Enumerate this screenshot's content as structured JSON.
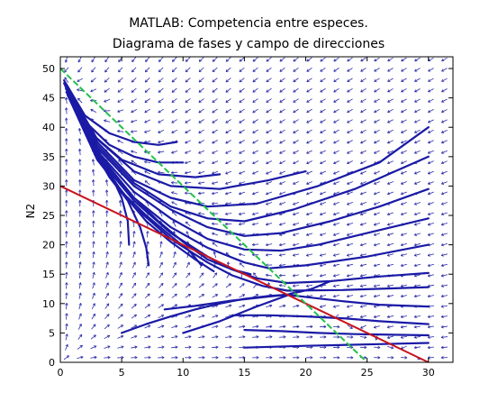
{
  "chart_data": {
    "type": "line",
    "title": "MATLAB: Competencia entre especes.",
    "subtitle": "Diagrama de fases y campo de direcciones",
    "xlabel": "",
    "ylabel": "N2",
    "xlim": [
      0,
      32
    ],
    "ylim": [
      0,
      52
    ],
    "xticks": [
      0,
      5,
      10,
      15,
      20,
      25,
      30
    ],
    "yticks": [
      0,
      5,
      10,
      15,
      20,
      25,
      30,
      35,
      40,
      45,
      50
    ],
    "grid": false,
    "legend": "none",
    "colors": {
      "trajectory": "#1a1aa6",
      "field": "#2a2aa8",
      "nullcline_1": "#c8141e",
      "nullcline_2": "#22c04a"
    },
    "nullclines": [
      {
        "x": [
          0,
          30
        ],
        "y": [
          30,
          0
        ]
      },
      {
        "x": [
          0,
          25
        ],
        "y": [
          50,
          0
        ]
      }
    ],
    "equilibrium": {
      "x": 18.5,
      "y": 11.5
    },
    "trajectories": [
      {
        "x": [
          0.3,
          2,
          4,
          6,
          8,
          9.5
        ],
        "y": [
          48,
          42,
          39,
          37.5,
          37,
          37.5
        ]
      },
      {
        "x": [
          0.3,
          2,
          4,
          6,
          8,
          10
        ],
        "y": [
          47.5,
          41,
          37,
          35,
          34,
          34
        ]
      },
      {
        "x": [
          0.4,
          2.5,
          5,
          8,
          11,
          13
        ],
        "y": [
          47,
          39,
          34.5,
          32,
          31.5,
          32
        ]
      },
      {
        "x": [
          0.5,
          3,
          6,
          9,
          13,
          17,
          20
        ],
        "y": [
          47,
          38,
          32.5,
          30,
          29.5,
          31,
          32.5
        ]
      },
      {
        "x": [
          0.5,
          3,
          6,
          9,
          12,
          16,
          21,
          26,
          30
        ],
        "y": [
          46.5,
          37.5,
          31,
          28,
          26.5,
          27,
          30,
          34,
          40
        ]
      },
      {
        "x": [
          0.5,
          3,
          6,
          9,
          12,
          15,
          19,
          24,
          30
        ],
        "y": [
          46.5,
          37,
          30.5,
          26.5,
          24.5,
          24,
          26,
          29.5,
          35
        ]
      },
      {
        "x": [
          0.5,
          3,
          6,
          9,
          12,
          15,
          18,
          22,
          26,
          30
        ],
        "y": [
          46.5,
          36.5,
          30,
          26,
          23,
          21.5,
          22,
          24,
          26.5,
          29.5
        ]
      },
      {
        "x": [
          0.5,
          3,
          6,
          9,
          12,
          15,
          18,
          21,
          25,
          30
        ],
        "y": [
          46,
          36,
          29,
          24.5,
          21,
          19.2,
          19,
          20,
          22,
          24.5
        ]
      },
      {
        "x": [
          0.5,
          3,
          6,
          9,
          12,
          15,
          17,
          20,
          25,
          30
        ],
        "y": [
          46,
          35.5,
          28,
          23,
          19.5,
          17,
          16,
          16.5,
          18,
          20
        ]
      },
      {
        "x": [
          0.6,
          3,
          6,
          9,
          12,
          14,
          16,
          18.5,
          22,
          26,
          30
        ],
        "y": [
          46,
          35,
          27.5,
          22,
          18,
          15.8,
          14.3,
          13.5,
          13.8,
          14.6,
          15.2
        ]
      },
      {
        "x": [
          0.6,
          3,
          6,
          9,
          12,
          14,
          16.5,
          18.5,
          23,
          30
        ],
        "y": [
          45.5,
          34.5,
          26.5,
          21,
          17,
          14.8,
          13,
          12.2,
          12.3,
          12.8
        ]
      },
      {
        "x": [
          0.6,
          3,
          5,
          7,
          9,
          10.5,
          11.5
        ],
        "y": [
          45.5,
          35,
          29,
          25,
          21.5,
          19,
          16.5
        ]
      },
      {
        "x": [
          0.6,
          2.5,
          4,
          5.5,
          6.5,
          7,
          7.2
        ],
        "y": [
          45.5,
          37,
          31.5,
          27.5,
          23,
          19.5,
          16.5
        ]
      },
      {
        "x": [
          0.6,
          2.5,
          4,
          5,
          5.5,
          5.6
        ],
        "y": [
          45.5,
          37.5,
          32.5,
          28,
          24,
          20
        ]
      },
      {
        "x": [
          0.6,
          3,
          5,
          7,
          9,
          11,
          12.5
        ],
        "y": [
          45.5,
          35.5,
          29,
          24,
          20.5,
          17.5,
          15.5
        ]
      },
      {
        "x": [
          0.6,
          3.5,
          6,
          8,
          10,
          12,
          14,
          15.5
        ],
        "y": [
          45.5,
          34.5,
          28,
          24,
          20.5,
          17.5,
          15.8,
          15
        ]
      },
      {
        "x": [
          5,
          7,
          9,
          11,
          13,
          15,
          17,
          18.5
        ],
        "y": [
          5,
          6.5,
          7.8,
          9,
          10,
          10.8,
          11.3,
          11.5
        ]
      },
      {
        "x": [
          8.5,
          11,
          14,
          17,
          18.5
        ],
        "y": [
          9,
          9.6,
          10.5,
          11.2,
          11.5
        ]
      },
      {
        "x": [
          10,
          13,
          16,
          18.5
        ],
        "y": [
          5,
          7,
          9.5,
          11.4
        ]
      },
      {
        "x": [
          14,
          17,
          20,
          23,
          26,
          30
        ],
        "y": [
          8,
          8,
          7.8,
          7.5,
          7,
          6.5
        ]
      },
      {
        "x": [
          15,
          18,
          21,
          24,
          27,
          30
        ],
        "y": [
          5.5,
          5.3,
          5,
          4.8,
          4.7,
          4.6
        ]
      },
      {
        "x": [
          22,
          20.5,
          19.5,
          18.8,
          18.5
        ],
        "y": [
          13.8,
          12.5,
          12,
          11.7,
          11.5
        ]
      },
      {
        "x": [
          30,
          26,
          23,
          20.5,
          18.5
        ],
        "y": [
          9.5,
          9.8,
          10.4,
          11,
          11.5
        ]
      },
      {
        "x": [
          15,
          20,
          26,
          30
        ],
        "y": [
          2.5,
          2.8,
          3.1,
          3.3
        ]
      }
    ]
  }
}
